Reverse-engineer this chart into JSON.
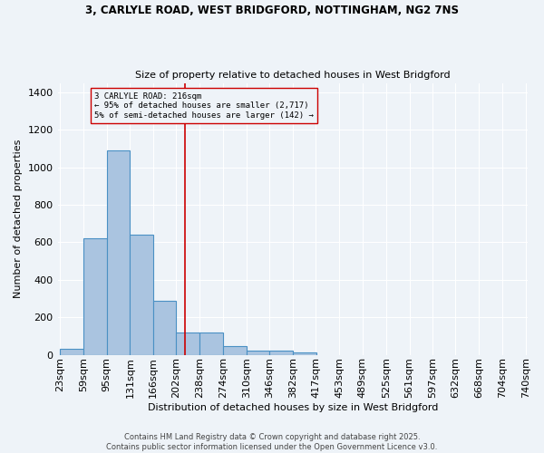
{
  "title_line1": "3, CARLYLE ROAD, WEST BRIDGFORD, NOTTINGHAM, NG2 7NS",
  "title_line2": "Size of property relative to detached houses in West Bridgford",
  "xlabel": "Distribution of detached houses by size in West Bridgford",
  "ylabel": "Number of detached properties",
  "bin_labels": [
    "23sqm",
    "59sqm",
    "95sqm",
    "131sqm",
    "166sqm",
    "202sqm",
    "238sqm",
    "274sqm",
    "310sqm",
    "346sqm",
    "382sqm",
    "417sqm",
    "453sqm",
    "489sqm",
    "525sqm",
    "561sqm",
    "597sqm",
    "632sqm",
    "668sqm",
    "704sqm",
    "740sqm"
  ],
  "bin_edges": [
    23,
    59,
    95,
    131,
    166,
    202,
    238,
    274,
    310,
    346,
    382,
    417,
    453,
    489,
    525,
    561,
    597,
    632,
    668,
    704,
    740
  ],
  "bar_values": [
    30,
    620,
    1090,
    640,
    290,
    120,
    120,
    45,
    22,
    22,
    10,
    0,
    0,
    0,
    0,
    0,
    0,
    0,
    0,
    0
  ],
  "bar_color": "#aac4e0",
  "bar_edge_color": "#4a90c4",
  "reference_line_x": 216,
  "annotation_text": "3 CARLYLE ROAD: 216sqm\n← 95% of detached houses are smaller (2,717)\n5% of semi-detached houses are larger (142) →",
  "annotation_box_color": "#cc0000",
  "background_color": "#eef3f8",
  "grid_color": "#ffffff",
  "ylim": [
    0,
    1450
  ],
  "yticks": [
    0,
    200,
    400,
    600,
    800,
    1000,
    1200,
    1400
  ],
  "footnote_line1": "Contains HM Land Registry data © Crown copyright and database right 2025.",
  "footnote_line2": "Contains public sector information licensed under the Open Government Licence v3.0."
}
